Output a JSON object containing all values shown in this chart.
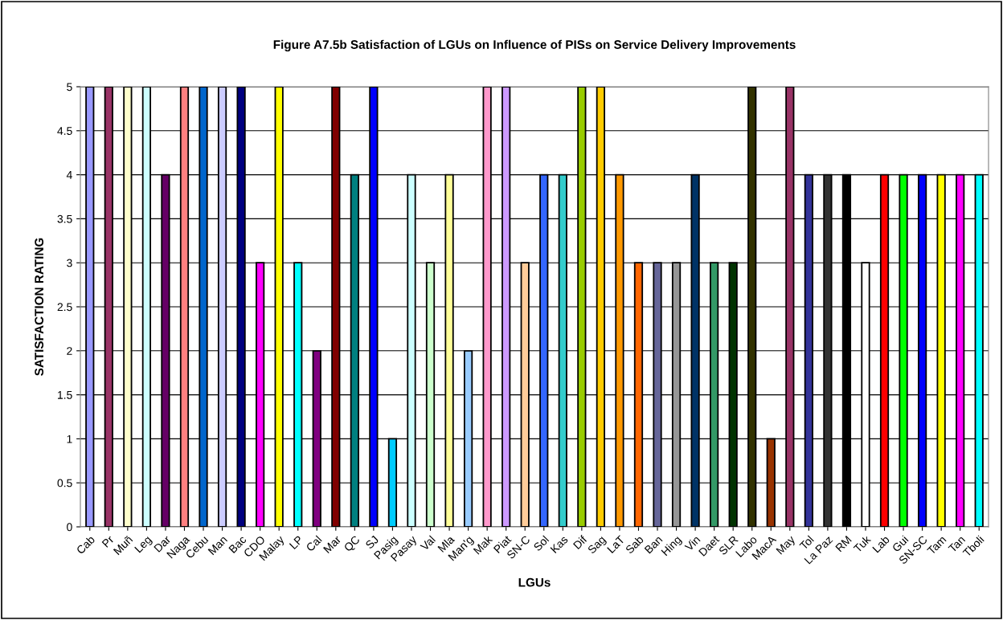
{
  "chart_data": {
    "type": "bar",
    "title": "Figure A7.5b Satisfaction of LGUs on Influence of PISs on Service Delivery Improvements",
    "xlabel": "LGUs",
    "ylabel": "SATISFACTION RATING",
    "categories": [
      "Cab",
      "Pr",
      "Muñ",
      "Leg",
      "Dar",
      "Naga",
      "Cebu",
      "Man",
      "Bac",
      "CDO",
      "Malay",
      "LP",
      "Cal",
      "Mar",
      "QC",
      "SJ",
      "Pasig",
      "Pasay",
      "Val",
      "Mla",
      "Man'g",
      "Mak",
      "Piat",
      "SN-C",
      "Sol",
      "Kas",
      "Dif",
      "Sag",
      "LaT",
      "Sab",
      "Ban",
      "Hing",
      "Vin",
      "Daet",
      "SLR",
      "Labo",
      "MacA",
      "May",
      "Tol",
      "La Paz",
      "RM",
      "Tuk",
      "Lab",
      "Gui",
      "SN-SC",
      "Tam",
      "Tan",
      "Tboli"
    ],
    "values": [
      5,
      5,
      5,
      5,
      4,
      5,
      5,
      5,
      5,
      3,
      5,
      3,
      2,
      5,
      4,
      5,
      1,
      4,
      3,
      4,
      2,
      5,
      5,
      3,
      4,
      4,
      5,
      5,
      4,
      3,
      3,
      3,
      4,
      3,
      3,
      5,
      1,
      5,
      4,
      4,
      4,
      3,
      4,
      4,
      4,
      4,
      4,
      4
    ],
    "colors": [
      "#9999ff",
      "#993366",
      "#ffffcc",
      "#ccffff",
      "#660066",
      "#ff8080",
      "#0066cc",
      "#ccccff",
      "#000080",
      "#ff00ff",
      "#ffff00",
      "#00ffff",
      "#800080",
      "#800000",
      "#008080",
      "#0000ff",
      "#00ccff",
      "#ccffff",
      "#ccffcc",
      "#ffff99",
      "#99ccff",
      "#ff99cc",
      "#cc99ff",
      "#ffcc99",
      "#3366ff",
      "#33cccc",
      "#99cc00",
      "#ffcc00",
      "#ff9900",
      "#ff6600",
      "#666699",
      "#969696",
      "#003366",
      "#339966",
      "#003300",
      "#333300",
      "#993300",
      "#993366",
      "#333399",
      "#333333",
      "#000000",
      "#ffffff",
      "#ff0000",
      "#00ff00",
      "#0000ff",
      "#ffff00",
      "#ff00ff",
      "#00ffff"
    ],
    "ylim": [
      0,
      5
    ],
    "yticks": [
      0,
      0.5,
      1,
      1.5,
      2,
      2.5,
      3,
      3.5,
      4,
      4.5,
      5
    ],
    "grid": "y",
    "legend": false
  }
}
